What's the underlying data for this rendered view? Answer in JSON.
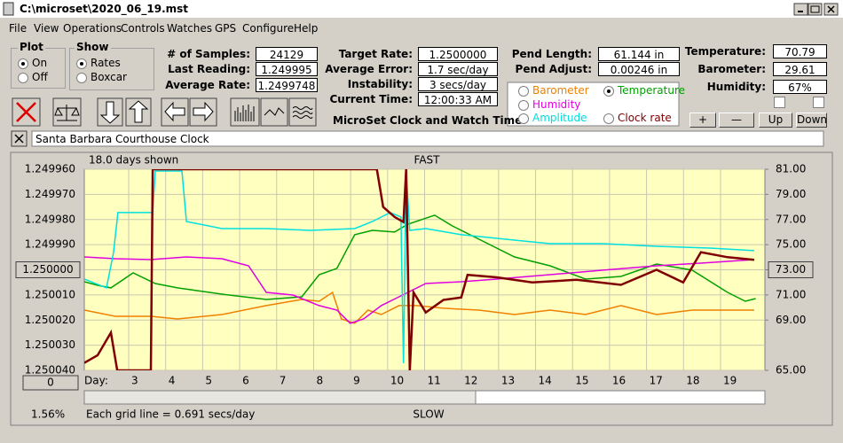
{
  "window": {
    "title": "C:\\microset\\2020_06_19.mst"
  },
  "menu": [
    "File",
    "View",
    "Operations",
    "Controls",
    "Watches",
    "GPS",
    "Configure",
    "Help"
  ],
  "plot_group": {
    "title": "Plot",
    "options": [
      "On",
      "Off"
    ]
  },
  "show_group": {
    "title": "Show",
    "options": [
      "Rates",
      "Boxcar"
    ]
  },
  "fields": [
    {
      "label": "# of Samples:",
      "value": "24129"
    },
    {
      "label": "Last Reading:",
      "value": "1.249995"
    },
    {
      "label": "Average Rate:",
      "value": "1.2499748"
    },
    {
      "label": "Target Rate:",
      "value": "1.2500000"
    },
    {
      "label": "Average Error:",
      "value": "1.7 sec/day"
    },
    {
      "label": "Instability:",
      "value": "3 secs/day"
    },
    {
      "label": "Current Time:",
      "value": "12:00:33 AM"
    },
    {
      "label": "Pend Length:",
      "value": "61.144 in"
    },
    {
      "label": "Pend Adjust:",
      "value": "0.00246 in"
    },
    {
      "label": "Temperature:",
      "value": "70.79"
    },
    {
      "label": "Barometer:",
      "value": "29.61"
    },
    {
      "label": "Humidity:",
      "value": "67%"
    }
  ],
  "app_caption": "MicroSet Clock and Watch Timer",
  "buttons": [
    "+",
    "—",
    "Up",
    "Down"
  ],
  "clock_name": "Santa Barbara Courthouse Clock",
  "chart_data": {
    "type": "line",
    "top_label": "FAST",
    "bottom_label": "SLOW",
    "span_label": "18.0 days shown",
    "x_label": "Day:",
    "grid_note": "Each grid line = 0.691 secs/day",
    "scroll_percent": "1.56%",
    "scroll_button": "0",
    "grid": true,
    "xlim": [
      1.8,
      20.2
    ],
    "xticks": [
      3,
      4,
      5,
      6,
      7,
      8,
      9,
      10,
      11,
      12,
      13,
      14,
      15,
      16,
      17,
      18,
      19
    ],
    "ylim": [
      1.25004,
      1.24996
    ],
    "yticks": [
      {
        "value": 1.24996,
        "label": "1.249960"
      },
      {
        "value": 1.24997,
        "label": "1.249970"
      },
      {
        "value": 1.24998,
        "label": "1.249980"
      },
      {
        "value": 1.24999,
        "label": "1.249990"
      },
      {
        "value": 1.25,
        "label": "1.250000"
      },
      {
        "value": 1.25001,
        "label": "1.250010"
      },
      {
        "value": 1.25002,
        "label": "1.250020"
      },
      {
        "value": 1.25003,
        "label": "1.250030"
      },
      {
        "value": 1.25004,
        "label": "1.250040"
      }
    ],
    "y2lim": [
      65,
      81
    ],
    "y2ticks": [
      {
        "value": 81,
        "label": "81.00"
      },
      {
        "value": 79,
        "label": "79.00"
      },
      {
        "value": 77,
        "label": "77.00"
      },
      {
        "value": 75,
        "label": "75.00"
      },
      {
        "value": 73,
        "label": "73.00"
      },
      {
        "value": 71,
        "label": "71.00"
      },
      {
        "value": 69,
        "label": "69.00"
      },
      {
        "value": 65,
        "label": "65.00"
      }
    ],
    "selected_series": 1,
    "series": [
      {
        "name": "Barometer",
        "color": "#f08000",
        "axis": "y2",
        "x": [
          1.8,
          2.64,
          3.6,
          4.32,
          5.52,
          6.72,
          7.68,
          8.15,
          8.51,
          8.75,
          9.11,
          9.47,
          9.83,
          10.31,
          10.79,
          11.51,
          12.47,
          13.43,
          14.39,
          15.35,
          16.31,
          17.27,
          18.23,
          19.19,
          19.91
        ],
        "values": [
          69.79,
          69.3,
          69.3,
          69.09,
          69.44,
          70.15,
          70.64,
          70.5,
          71.2,
          69.09,
          68.74,
          69.79,
          69.44,
          70.15,
          70.15,
          69.94,
          69.79,
          69.44,
          69.79,
          69.44,
          70.15,
          69.44,
          69.79,
          69.79,
          69.79
        ]
      },
      {
        "name": "Temperature",
        "color": "#00a000",
        "axis": "y2",
        "x": [
          1.8,
          2.16,
          2.52,
          3.12,
          3.72,
          4.32,
          5.52,
          6.72,
          7.68,
          8.15,
          8.63,
          9.11,
          9.59,
          10.19,
          10.55,
          11.27,
          11.75,
          12.47,
          13.43,
          14.39,
          15.35,
          16.31,
          17.27,
          18.23,
          19.19,
          19.67,
          19.95
        ],
        "values": [
          72.05,
          71.77,
          71.56,
          72.75,
          71.91,
          71.56,
          71.06,
          70.64,
          70.85,
          72.61,
          73.11,
          75.79,
          76.14,
          76.0,
          76.63,
          77.34,
          76.49,
          75.43,
          74.02,
          73.32,
          72.26,
          72.47,
          73.46,
          72.97,
          71.2,
          70.5,
          70.71
        ]
      },
      {
        "name": "Humidity",
        "color": "#e000e0",
        "axis": "y2",
        "x": [
          1.8,
          2.64,
          3.6,
          4.56,
          5.52,
          6.24,
          6.72,
          7.44,
          8.15,
          8.63,
          8.99,
          9.35,
          9.83,
          10.31,
          11.03,
          11.99,
          12.95,
          14.39,
          15.83,
          17.27,
          18.47,
          19.91
        ],
        "values": [
          74.02,
          73.88,
          73.81,
          74.02,
          73.88,
          73.32,
          71.2,
          70.99,
          70.15,
          69.79,
          68.74,
          69.09,
          70.15,
          70.85,
          71.91,
          72.05,
          72.26,
          72.61,
          72.97,
          73.32,
          73.53,
          73.81
        ]
      },
      {
        "name": "Amplitude",
        "color": "#00e0e0",
        "axis": "y2",
        "x": [
          1.8,
          2.4,
          2.59,
          2.71,
          3.36,
          3.65,
          3.72,
          4.44,
          4.56,
          5.52,
          6.72,
          7.92,
          9.11,
          9.59,
          10.07,
          10.36,
          10.43,
          10.5,
          10.6,
          11.03,
          11.99,
          13.19,
          14.39,
          15.83,
          17.27,
          18.71,
          19.91
        ],
        "values": [
          72.26,
          71.56,
          74.37,
          77.55,
          77.55,
          77.55,
          80.86,
          80.86,
          76.84,
          76.28,
          76.28,
          76.14,
          76.28,
          76.84,
          77.55,
          77.2,
          65.57,
          80.86,
          76.14,
          76.28,
          75.79,
          75.43,
          75.08,
          75.08,
          74.87,
          74.73,
          74.52
        ]
      },
      {
        "name": "Clock rate",
        "color": "#800000",
        "axis": "y",
        "x": [
          1.8,
          2.16,
          2.52,
          2.69,
          3.6,
          3.65,
          9.71,
          9.88,
          10.19,
          10.43,
          10.5,
          10.6,
          10.7,
          11.03,
          11.51,
          11.99,
          12.16,
          12.95,
          13.91,
          15.11,
          16.31,
          17.27,
          17.99,
          18.47,
          19.19,
          19.91
        ],
        "values": [
          1.250037,
          1.250034,
          1.250025,
          1.25004,
          1.25004,
          1.24996,
          1.24996,
          1.249975,
          1.249979,
          1.249981,
          1.24996,
          1.25004,
          1.250009,
          1.250017,
          1.250012,
          1.250011,
          1.250002,
          1.250003,
          1.250005,
          1.250004,
          1.250006,
          1.25,
          1.250005,
          1.249993,
          1.249995,
          1.249996
        ]
      }
    ]
  }
}
